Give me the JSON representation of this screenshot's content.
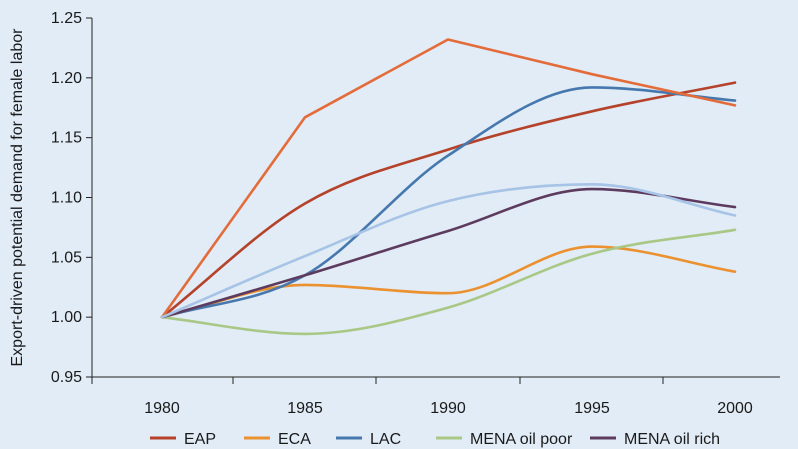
{
  "chart_data": {
    "type": "line",
    "title": "",
    "xlabel": "",
    "ylabel": "Export-driven potential demand for female labor",
    "x": [
      1980,
      1985,
      1990,
      1995,
      2000
    ],
    "x_ticks": [
      "1980",
      "1985",
      "1990",
      "1995",
      "2000"
    ],
    "y_ticks": [
      "0.95",
      "1.00",
      "1.05",
      "1.10",
      "1.15",
      "1.20",
      "1.25"
    ],
    "ylim": [
      0.95,
      1.25
    ],
    "grid": false,
    "legend_position": "bottom",
    "series": [
      {
        "name": "EAP",
        "color": "#b5422a",
        "values": [
          1.0,
          1.095,
          1.14,
          1.172,
          1.196
        ]
      },
      {
        "name": "ECA",
        "color": "#eb9130",
        "values": [
          1.0,
          1.027,
          1.02,
          1.059,
          1.038
        ]
      },
      {
        "name": "LAC",
        "color": "#4678ae",
        "values": [
          1.0,
          1.035,
          1.135,
          1.192,
          1.181
        ]
      },
      {
        "name": "MENA oil poor",
        "color": "#a9c785",
        "values": [
          1.0,
          0.986,
          1.008,
          1.053,
          1.073
        ]
      },
      {
        "name": "MENA oil rich",
        "color": "#5d3b5e",
        "values": [
          1.0,
          1.035,
          1.072,
          1.107,
          1.092
        ]
      },
      {
        "name": "",
        "color": "#e36c3a",
        "values": [
          1.0,
          1.167,
          1.232,
          1.203,
          1.177
        ]
      },
      {
        "name": "",
        "color": "#a7c3e6",
        "values": [
          1.0,
          1.051,
          1.097,
          1.111,
          1.085
        ]
      }
    ]
  }
}
